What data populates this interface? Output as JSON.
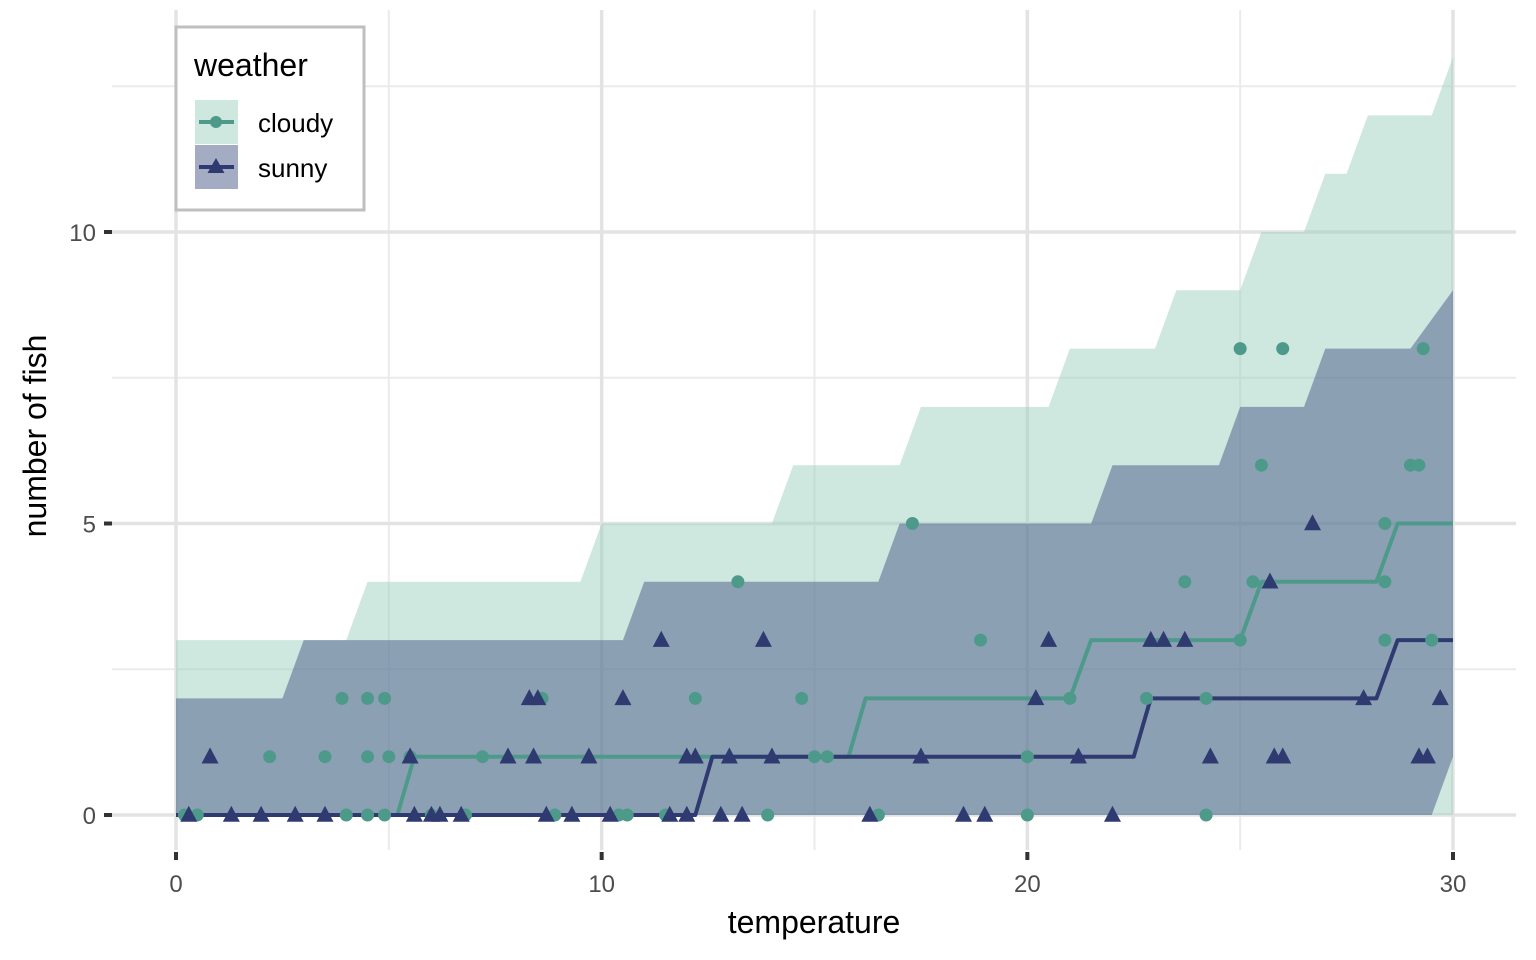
{
  "chart_data": {
    "type": "line",
    "xlabel": "temperature",
    "ylabel": "number of fish",
    "xlim": [
      -1.5,
      31.5
    ],
    "ylim": [
      -0.55,
      13.5
    ],
    "x_ticks": [
      0,
      10,
      20,
      30
    ],
    "x_tick_labels": [
      "0",
      "10",
      "20",
      "30"
    ],
    "y_ticks": [
      0,
      5,
      10
    ],
    "y_tick_labels": [
      "0",
      "5",
      "10"
    ],
    "grid": true,
    "legend": {
      "title": "weather",
      "position": "top-left"
    },
    "series": [
      {
        "name": "cloudy",
        "color": "#4e9a8a",
        "fill": "#9ed0c0",
        "marker": "circle",
        "step_line": [
          [
            0,
            0
          ],
          [
            5.2,
            0
          ],
          [
            5.6,
            1
          ],
          [
            15.8,
            1
          ],
          [
            16.2,
            2
          ],
          [
            21,
            2
          ],
          [
            21.5,
            3
          ],
          [
            25,
            3
          ],
          [
            25.5,
            4
          ],
          [
            28.2,
            4
          ],
          [
            28.7,
            5
          ],
          [
            30,
            5
          ]
        ],
        "band_upper": [
          [
            0,
            3
          ],
          [
            2.6,
            3
          ],
          [
            3,
            3
          ],
          [
            4,
            3
          ],
          [
            4.5,
            4
          ],
          [
            9.5,
            4
          ],
          [
            10,
            5
          ],
          [
            14,
            5
          ],
          [
            14.5,
            6
          ],
          [
            17,
            6
          ],
          [
            17.5,
            7
          ],
          [
            20.5,
            7
          ],
          [
            21,
            8
          ],
          [
            23,
            8
          ],
          [
            23.5,
            9
          ],
          [
            25,
            9
          ],
          [
            25.5,
            10
          ],
          [
            26.5,
            10
          ],
          [
            27,
            11
          ],
          [
            27.5,
            11
          ],
          [
            28,
            12
          ],
          [
            29,
            12
          ],
          [
            29.5,
            12
          ],
          [
            30,
            13
          ]
        ],
        "band_lower": [
          [
            0,
            0
          ],
          [
            30,
            0
          ]
        ],
        "points": [
          [
            0.2,
            0
          ],
          [
            0.5,
            0
          ],
          [
            2.2,
            1
          ],
          [
            3.5,
            1
          ],
          [
            3.9,
            2
          ],
          [
            4.0,
            0
          ],
          [
            4.5,
            2
          ],
          [
            4.5,
            1
          ],
          [
            4.5,
            0
          ],
          [
            4.9,
            2
          ],
          [
            4.9,
            0
          ],
          [
            5.0,
            1
          ],
          [
            5.5,
            1
          ],
          [
            6.0,
            0
          ],
          [
            6.8,
            0
          ],
          [
            7.2,
            1
          ],
          [
            8.6,
            2
          ],
          [
            8.9,
            0
          ],
          [
            10.4,
            0
          ],
          [
            10.6,
            0
          ],
          [
            11.5,
            0
          ],
          [
            12.2,
            2
          ],
          [
            13.2,
            4
          ],
          [
            13.9,
            0
          ],
          [
            14.7,
            2
          ],
          [
            15.0,
            1
          ],
          [
            15.3,
            1
          ],
          [
            16.5,
            0
          ],
          [
            17.3,
            5
          ],
          [
            18.9,
            3
          ],
          [
            20.0,
            0
          ],
          [
            20.0,
            1
          ],
          [
            21.0,
            2
          ],
          [
            22.8,
            2
          ],
          [
            23.7,
            4
          ],
          [
            24.2,
            2
          ],
          [
            24.2,
            0
          ],
          [
            25.0,
            3
          ],
          [
            25.0,
            8
          ],
          [
            25.3,
            4
          ],
          [
            25.5,
            6
          ],
          [
            26.0,
            8
          ],
          [
            28.4,
            4
          ],
          [
            28.4,
            3
          ],
          [
            28.4,
            5
          ],
          [
            29.0,
            6
          ],
          [
            29.2,
            6
          ],
          [
            29.3,
            8
          ],
          [
            29.5,
            3
          ]
        ]
      },
      {
        "name": "sunny",
        "color": "#2f3b70",
        "fill": "#4a5a8a",
        "marker": "triangle",
        "step_line": [
          [
            0,
            0
          ],
          [
            12.2,
            0
          ],
          [
            12.6,
            1
          ],
          [
            22.5,
            1
          ],
          [
            22.9,
            2
          ],
          [
            28.2,
            2
          ],
          [
            28.7,
            3
          ],
          [
            30,
            3
          ]
        ],
        "band_upper": [
          [
            0,
            2
          ],
          [
            2.5,
            2
          ],
          [
            3,
            3
          ],
          [
            10.5,
            3
          ],
          [
            11,
            4
          ],
          [
            16.5,
            4
          ],
          [
            17,
            5
          ],
          [
            21.5,
            5
          ],
          [
            22,
            6
          ],
          [
            24.5,
            6
          ],
          [
            25,
            7
          ],
          [
            26.5,
            7
          ],
          [
            27,
            8
          ],
          [
            29,
            8
          ],
          [
            30,
            9
          ]
        ],
        "band_lower": [
          [
            0,
            0
          ],
          [
            29.5,
            0
          ],
          [
            30,
            1
          ]
        ],
        "points": [
          [
            0.3,
            0
          ],
          [
            0.8,
            1
          ],
          [
            1.3,
            0
          ],
          [
            2.0,
            0
          ],
          [
            2.8,
            0
          ],
          [
            3.5,
            0
          ],
          [
            5.5,
            1
          ],
          [
            5.6,
            0
          ],
          [
            6.0,
            0
          ],
          [
            6.2,
            0
          ],
          [
            6.7,
            0
          ],
          [
            7.8,
            1
          ],
          [
            8.3,
            2
          ],
          [
            8.4,
            1
          ],
          [
            8.5,
            2
          ],
          [
            8.7,
            0
          ],
          [
            9.3,
            0
          ],
          [
            9.7,
            1
          ],
          [
            10.2,
            0
          ],
          [
            10.5,
            2
          ],
          [
            11.4,
            3
          ],
          [
            11.6,
            0
          ],
          [
            12.0,
            0
          ],
          [
            12.0,
            1
          ],
          [
            12.2,
            1
          ],
          [
            12.8,
            0
          ],
          [
            13.0,
            1
          ],
          [
            13.3,
            0
          ],
          [
            13.8,
            3
          ],
          [
            14.0,
            1
          ],
          [
            16.3,
            0
          ],
          [
            17.5,
            1
          ],
          [
            18.5,
            0
          ],
          [
            19.0,
            0
          ],
          [
            20.2,
            2
          ],
          [
            20.5,
            3
          ],
          [
            21.2,
            1
          ],
          [
            22.0,
            0
          ],
          [
            22.9,
            3
          ],
          [
            23.2,
            3
          ],
          [
            23.7,
            3
          ],
          [
            24.3,
            1
          ],
          [
            25.7,
            4
          ],
          [
            25.8,
            1
          ],
          [
            26.0,
            1
          ],
          [
            26.7,
            5
          ],
          [
            27.9,
            2
          ],
          [
            29.2,
            1
          ],
          [
            29.4,
            1
          ],
          [
            29.7,
            2
          ]
        ]
      }
    ]
  }
}
